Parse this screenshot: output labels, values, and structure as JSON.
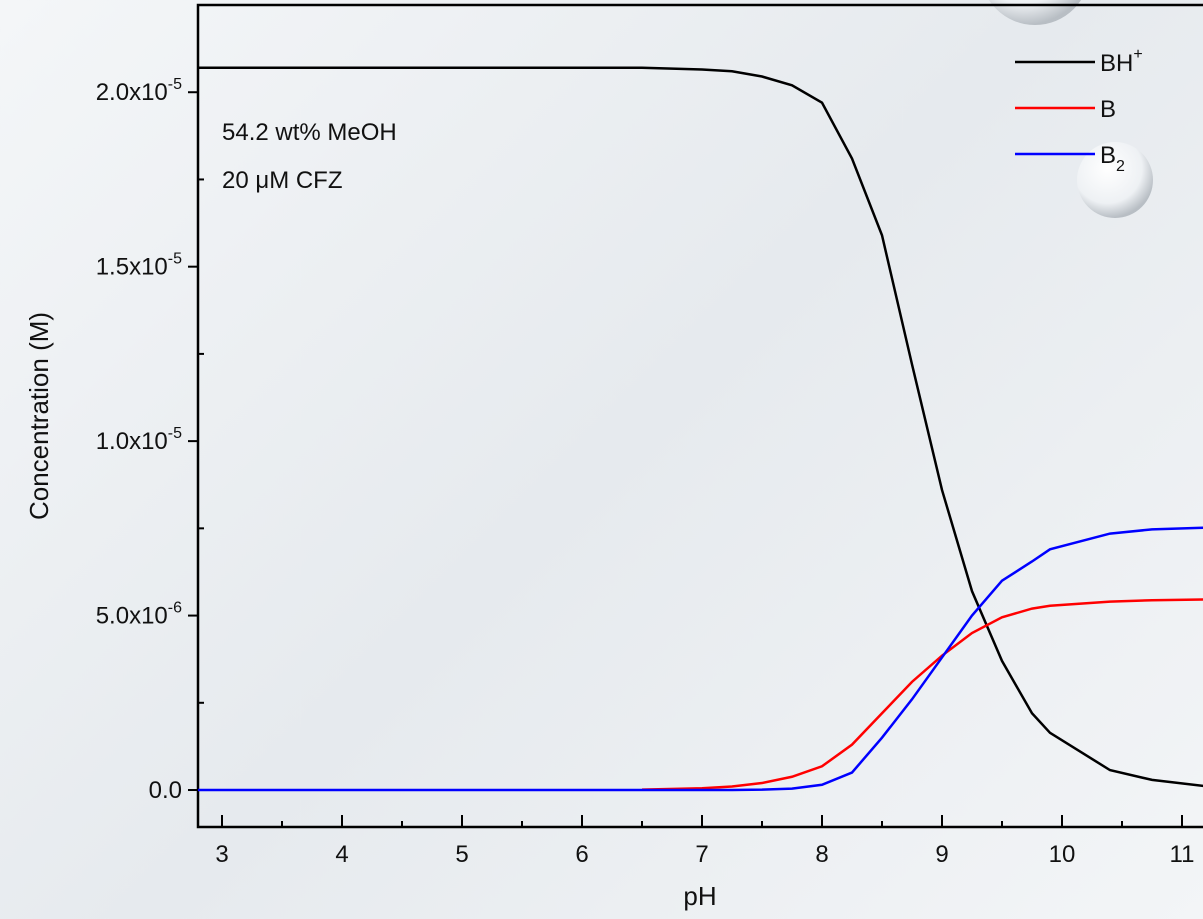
{
  "chart_data": {
    "type": "line",
    "xlabel": "pH",
    "ylabel": "Concentration (M)",
    "annotations": [
      "54.2 wt% MeOH",
      "20 μM CFZ"
    ],
    "x": [
      2.8,
      3,
      3.5,
      4,
      4.5,
      5,
      5.5,
      6,
      6.5,
      7,
      7.25,
      7.5,
      7.75,
      8,
      8.25,
      8.5,
      8.75,
      9,
      9.25,
      9.5,
      9.75,
      9.9,
      10.4,
      10.75,
      11.2
    ],
    "series": [
      {
        "name": "BH",
        "superscript": "+",
        "color": "#000000",
        "values": [
          2.07e-05,
          2.07e-05,
          2.07e-05,
          2.07e-05,
          2.07e-05,
          2.07e-05,
          2.07e-05,
          2.07e-05,
          2.07e-05,
          2.065e-05,
          2.06e-05,
          2.045e-05,
          2.02e-05,
          1.97e-05,
          1.81e-05,
          1.59e-05,
          1.22e-05,
          8.6e-06,
          5.7e-06,
          3.7e-06,
          2.2e-06,
          1.64e-06,
          5.7e-07,
          2.9e-07,
          1.1e-07
        ]
      },
      {
        "name": "B",
        "color": "#ff0000",
        "values": [
          null,
          null,
          null,
          null,
          null,
          null,
          null,
          null,
          1e-08,
          5e-08,
          1e-07,
          2e-07,
          3.8e-07,
          6.8e-07,
          1.3e-06,
          2.2e-06,
          3.1e-06,
          3.85e-06,
          4.5e-06,
          4.95e-06,
          5.2e-06,
          5.28e-06,
          5.4e-06,
          5.44e-06,
          5.46e-06
        ]
      },
      {
        "name": "B",
        "subscript": "2",
        "color": "#0000ff",
        "values": [
          0,
          0,
          0,
          0,
          0,
          0,
          0,
          0,
          0,
          0,
          0,
          1e-08,
          4e-08,
          1.5e-07,
          5e-07,
          1.5e-06,
          2.6e-06,
          3.8e-06,
          5e-06,
          6e-06,
          6.55e-06,
          6.9e-06,
          7.35e-06,
          7.47e-06,
          7.52e-06
        ]
      }
    ],
    "xlim": [
      2.8,
      11.175
    ],
    "ylim": [
      -1.06e-06,
      2.25e-05
    ],
    "xticks": [
      3,
      4,
      5,
      6,
      7,
      8,
      9,
      10,
      11
    ],
    "xminorticks": [
      3.5,
      4.5,
      5.5,
      6.5,
      7.5,
      8.5,
      9.5,
      10.5
    ],
    "yticks": [
      {
        "value": 0,
        "label": "0.0"
      },
      {
        "value": 5e-06,
        "label": "5.0x10",
        "exponent": "-6"
      },
      {
        "value": 1e-05,
        "label": "1.0x10",
        "exponent": "-5"
      },
      {
        "value": 1.5e-05,
        "label": "1.5x10",
        "exponent": "-5"
      },
      {
        "value": 2e-05,
        "label": "2.0x10",
        "exponent": "-5"
      }
    ],
    "yminorticks": [
      2.5e-06,
      7.5e-06,
      1.25e-05,
      1.75e-05
    ],
    "grid": false,
    "legend": "upper right"
  }
}
